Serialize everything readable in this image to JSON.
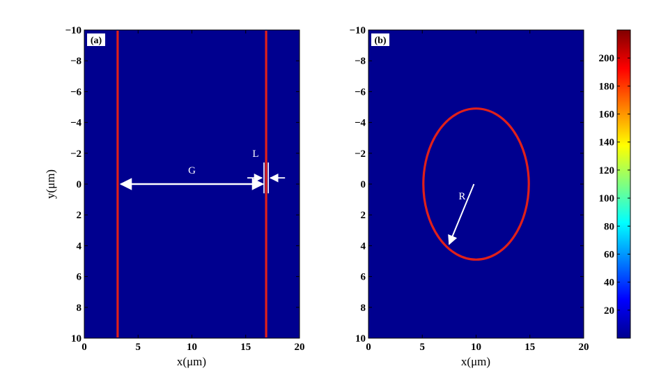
{
  "chart_data": [
    {
      "type": "heatmap",
      "panel_label": "(a)",
      "xlabel": "x(μm)",
      "ylabel": "y(μm)",
      "xlim": [
        0,
        20
      ],
      "ylim": [
        10,
        -10
      ],
      "y_inverted": true,
      "xticks": [
        "0",
        "5",
        "10",
        "15",
        "20"
      ],
      "yticks": [
        "−10",
        "−8",
        "−6",
        "−4",
        "−2",
        "0",
        "2",
        "4",
        "6",
        "8",
        "10"
      ],
      "background_value": 0,
      "features": [
        {
          "kind": "vertical-line",
          "x": 3.1,
          "value": 200
        },
        {
          "kind": "vertical-line",
          "x": 16.9,
          "value": 200
        }
      ],
      "annotations": [
        {
          "text": "G",
          "kind": "double-arrow",
          "x_from": 3.4,
          "x_to": 16.6,
          "y": 0.0
        },
        {
          "text": "L",
          "kind": "width-marker",
          "x_from": 16.7,
          "x_to": 17.1,
          "y_from": -1.4,
          "y_to": 0.6
        }
      ]
    },
    {
      "type": "heatmap",
      "panel_label": "(b)",
      "xlabel": "x(μm)",
      "ylabel": "",
      "xlim": [
        0,
        20
      ],
      "ylim": [
        10,
        -10
      ],
      "y_inverted": true,
      "xticks": [
        "0",
        "5",
        "10",
        "15",
        "20"
      ],
      "yticks": [
        "−10",
        "−8",
        "−6",
        "−4",
        "−2",
        "0",
        "2",
        "4",
        "6",
        "8",
        "10"
      ],
      "background_value": 0,
      "features": [
        {
          "kind": "circle",
          "cx": 10,
          "cy": 0,
          "r": 4.9,
          "value": 200
        }
      ],
      "annotations": [
        {
          "text": "R",
          "kind": "arrow",
          "x_from": 9.8,
          "y_from": 0.0,
          "x_to": 7.5,
          "y_to": 3.9
        }
      ]
    }
  ],
  "colorbar": {
    "min": 0,
    "max": 220,
    "ticks": [
      "20",
      "40",
      "60",
      "80",
      "100",
      "120",
      "140",
      "160",
      "180",
      "200"
    ],
    "tick_values": [
      20,
      40,
      60,
      80,
      100,
      120,
      140,
      160,
      180,
      200
    ],
    "colormap": "jet"
  },
  "colors": {
    "background": "#00008f",
    "feature": "#e0201a",
    "annotation": "#ffffff"
  }
}
